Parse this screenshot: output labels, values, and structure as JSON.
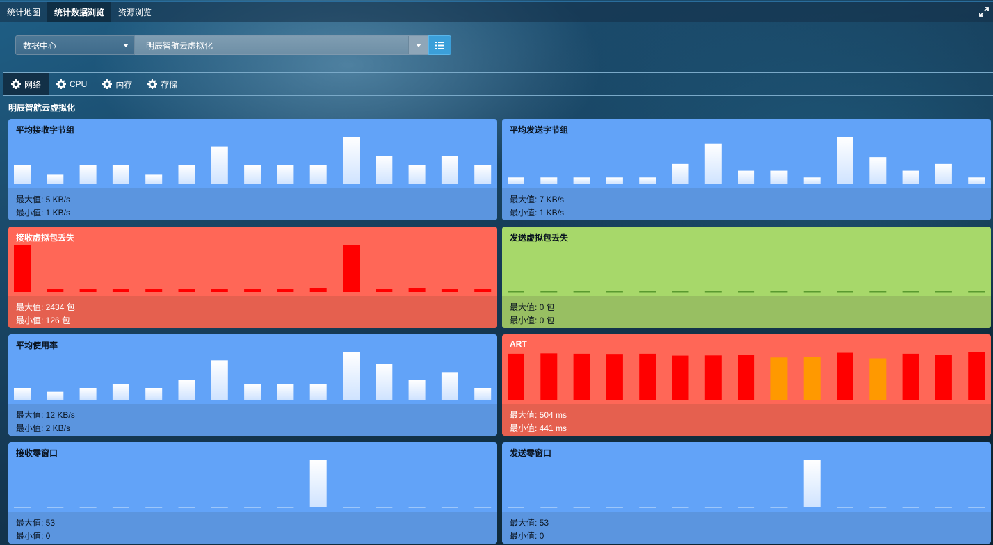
{
  "top_tabs": [
    {
      "label": "统计地图",
      "active": false
    },
    {
      "label": "统计数据浏览",
      "active": true
    },
    {
      "label": "资源浏览",
      "active": false
    }
  ],
  "filters": {
    "datacenter": "数据中心",
    "host": "明辰智航云虚拟化"
  },
  "metric_tabs": [
    {
      "label": "网络",
      "active": true
    },
    {
      "label": "CPU",
      "active": false
    },
    {
      "label": "内存",
      "active": false
    },
    {
      "label": "存储",
      "active": false
    }
  ],
  "section_title": "明辰智航云虚拟化",
  "colors": {
    "blue_panel": "#62a3f8",
    "red_panel": "#ff6757",
    "green_panel": "#a7d86a",
    "bar_white": "#ffffff",
    "bar_red": "#ff0000",
    "bar_orange": "#ff9900",
    "bar_green_flat": "#5a9a30"
  },
  "panels": [
    {
      "title": "平均接收字节组",
      "theme": "blue",
      "max_label": "最大值: 5 KB/s",
      "min_label": "最小值: 1 KB/s",
      "bars": [
        2,
        1,
        2,
        2,
        1,
        2,
        4,
        2,
        2,
        2,
        5,
        3,
        2,
        3,
        2
      ],
      "max": 5,
      "bar_colors": []
    },
    {
      "title": "平均发送字节组",
      "theme": "blue",
      "max_label": "最大值: 7 KB/s",
      "min_label": "最小值: 1 KB/s",
      "bars": [
        1,
        1,
        1,
        1,
        1,
        3,
        6,
        2,
        2,
        1,
        7,
        4,
        2,
        3,
        1
      ],
      "max": 7,
      "bar_colors": []
    },
    {
      "title": "接收虚拟包丢失",
      "theme": "red",
      "max_label": "最大值: 2434 包",
      "min_label": "最小值: 126 包",
      "bars": [
        2434,
        126,
        126,
        126,
        126,
        126,
        126,
        130,
        126,
        180,
        2434,
        126,
        180,
        126,
        130
      ],
      "max": 2434,
      "bar_colors": []
    },
    {
      "title": "发送虚拟包丢失",
      "theme": "green",
      "max_label": "最大值: 0 包",
      "min_label": "最小值: 0 包",
      "bars": [
        0,
        0,
        0,
        0,
        0,
        0,
        0,
        0,
        0,
        0,
        0,
        0,
        0,
        0,
        0
      ],
      "max": 0,
      "bar_colors": []
    },
    {
      "title": "平均使用率",
      "theme": "blue",
      "max_label": "最大值: 12 KB/s",
      "min_label": "最小值: 2 KB/s",
      "bars": [
        3,
        2,
        3,
        4,
        3,
        5,
        10,
        4,
        4,
        4,
        12,
        9,
        5,
        7,
        3
      ],
      "max": 12,
      "bar_colors": []
    },
    {
      "title": "ART",
      "theme": "red",
      "max_label": "最大值: 504 ms",
      "min_label": "最小值: 441 ms",
      "bars": [
        490,
        494,
        490,
        488,
        490,
        470,
        472,
        478,
        450,
        455,
        500,
        441,
        490,
        480,
        504
      ],
      "max": 504,
      "bar_colors": [
        "red",
        "red",
        "red",
        "red",
        "red",
        "red",
        "red",
        "red",
        "orange",
        "orange",
        "red",
        "orange",
        "red",
        "red",
        "red"
      ]
    },
    {
      "title": "接收零窗口",
      "theme": "blue",
      "max_label": "最大值: 53",
      "min_label": "最小值: 0",
      "bars": [
        0,
        0,
        0,
        0,
        0,
        0,
        0,
        0,
        0,
        53,
        0,
        0,
        0,
        0,
        0
      ],
      "max": 53,
      "bar_colors": []
    },
    {
      "title": "发送零窗口",
      "theme": "blue",
      "max_label": "最大值: 53",
      "min_label": "最小值: 0",
      "bars": [
        0,
        0,
        0,
        0,
        0,
        0,
        0,
        0,
        0,
        53,
        0,
        0,
        0,
        0,
        0
      ],
      "max": 53,
      "bar_colors": []
    }
  ]
}
